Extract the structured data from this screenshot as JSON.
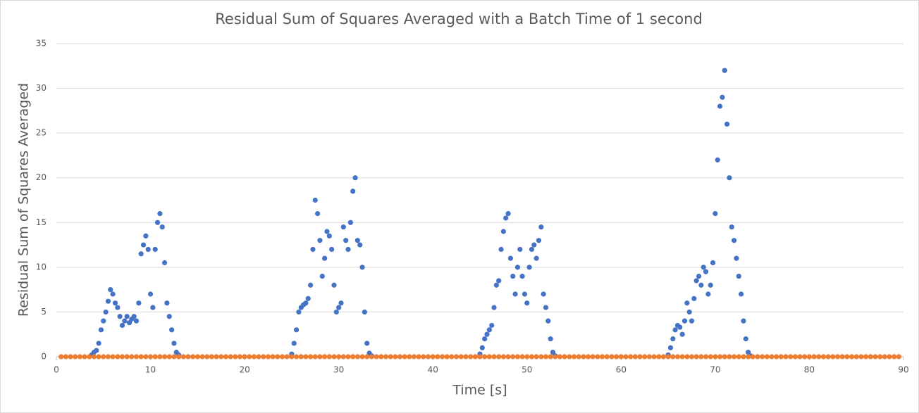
{
  "chart_data": {
    "type": "scatter",
    "title": "Residual Sum of Squares Averaged with a Batch Time of 1 second",
    "x_label": "Time [s]",
    "y_label": "Residual Sum of Squares Averaged",
    "xlim": [
      0,
      90
    ],
    "xticks": [
      0,
      10,
      20,
      30,
      40,
      50,
      60,
      70,
      80,
      90
    ],
    "ylim": [
      0,
      35
    ],
    "yticks": [
      0,
      5,
      10,
      15,
      20,
      25,
      30,
      35
    ],
    "grid": true,
    "series": [
      {
        "color": "#4472c4",
        "x": [
          3.75,
          4,
          4.25,
          4.5,
          4.75,
          5,
          5.25,
          5.5,
          5.75,
          6,
          6.25,
          6.5,
          6.75,
          7,
          7.25,
          7.5,
          7.75,
          8,
          8.25,
          8.5,
          8.75,
          9,
          9.25,
          9.5,
          9.75,
          10,
          10.25,
          10.5,
          10.75,
          11,
          11.25,
          11.5,
          11.75,
          12,
          12.25,
          12.5,
          12.75,
          13,
          25,
          25.25,
          25.5,
          25.75,
          26,
          26.25,
          26.5,
          26.75,
          27,
          27.25,
          27.5,
          27.75,
          28,
          28.25,
          28.5,
          28.75,
          29,
          29.25,
          29.5,
          29.75,
          30,
          30.25,
          30.5,
          30.75,
          31,
          31.25,
          31.5,
          31.75,
          32,
          32.25,
          32.5,
          32.75,
          33,
          33.25,
          33.5,
          45,
          45.25,
          45.5,
          45.75,
          46,
          46.25,
          46.5,
          46.75,
          47,
          47.25,
          47.5,
          47.75,
          48,
          48.25,
          48.5,
          48.75,
          49,
          49.25,
          49.5,
          49.75,
          50,
          50.25,
          50.5,
          50.75,
          51,
          51.25,
          51.5,
          51.75,
          52,
          52.25,
          52.5,
          52.75,
          53,
          65,
          65.25,
          65.5,
          65.75,
          66,
          66.25,
          66.5,
          66.75,
          67,
          67.25,
          67.5,
          67.75,
          68,
          68.25,
          68.5,
          68.75,
          69,
          69.25,
          69.5,
          69.75,
          70,
          70.25,
          70.5,
          70.75,
          71,
          71.25,
          71.5,
          71.75,
          72,
          72.25,
          72.5,
          72.75,
          73,
          73.25,
          73.5,
          73.75
        ],
        "values": [
          0.2,
          0.5,
          0.7,
          1.5,
          3,
          4,
          5,
          6.2,
          7.5,
          7,
          6,
          5.5,
          4.5,
          3.5,
          4,
          4.5,
          3.8,
          4.2,
          4.5,
          4,
          6,
          11.5,
          12.5,
          13.5,
          12,
          7,
          5.5,
          12,
          15,
          16,
          14.5,
          10.5,
          6,
          4.5,
          3,
          1.5,
          0.5,
          0.2,
          0.3,
          1.5,
          3,
          5,
          5.5,
          5.8,
          6,
          6.5,
          8,
          12,
          17.5,
          16,
          13,
          9,
          11,
          14,
          13.5,
          12,
          8,
          5,
          5.5,
          6,
          14.5,
          13,
          12,
          15,
          18.5,
          20,
          13,
          12.5,
          10,
          5,
          1.5,
          0.4,
          0.1,
          0.3,
          1,
          2,
          2.5,
          3,
          3.5,
          5.5,
          8,
          8.5,
          12,
          14,
          15.5,
          16,
          11,
          9,
          7,
          10,
          12,
          9,
          7,
          6,
          10,
          12,
          12.5,
          11,
          13,
          14.5,
          7,
          5.5,
          4,
          2,
          0.5,
          0.1,
          0.2,
          1,
          2,
          3,
          3.5,
          3.3,
          2.5,
          4,
          6,
          5,
          4,
          6.5,
          8.5,
          9,
          8,
          10,
          9.5,
          7,
          8,
          10.5,
          16,
          22,
          28,
          29,
          32,
          26,
          20,
          14.5,
          13,
          11,
          9,
          7,
          4,
          2,
          0.5,
          0.1
        ]
      },
      {
        "color": "#ed7d31",
        "x": [
          0.5,
          1,
          1.5,
          2,
          2.5,
          3,
          3.5,
          4,
          4.5,
          5,
          5.5,
          6,
          6.5,
          7,
          7.5,
          8,
          8.5,
          9,
          9.5,
          10,
          10.5,
          11,
          11.5,
          12,
          12.5,
          13,
          13.5,
          14,
          14.5,
          15,
          15.5,
          16,
          16.5,
          17,
          17.5,
          18,
          18.5,
          19,
          19.5,
          20,
          20.5,
          21,
          21.5,
          22,
          22.5,
          23,
          23.5,
          24,
          24.5,
          25,
          25.5,
          26,
          26.5,
          27,
          27.5,
          28,
          28.5,
          29,
          29.5,
          30,
          30.5,
          31,
          31.5,
          32,
          32.5,
          33,
          33.5,
          34,
          34.5,
          35,
          35.5,
          36,
          36.5,
          37,
          37.5,
          38,
          38.5,
          39,
          39.5,
          40,
          40.5,
          41,
          41.5,
          42,
          42.5,
          43,
          43.5,
          44,
          44.5,
          45,
          45.5,
          46,
          46.5,
          47,
          47.5,
          48,
          48.5,
          49,
          49.5,
          50,
          50.5,
          51,
          51.5,
          52,
          52.5,
          53,
          53.5,
          54,
          54.5,
          55,
          55.5,
          56,
          56.5,
          57,
          57.5,
          58,
          58.5,
          59,
          59.5,
          60,
          60.5,
          61,
          61.5,
          62,
          62.5,
          63,
          63.5,
          64,
          64.5,
          65,
          65.5,
          66,
          66.5,
          67,
          67.5,
          68,
          68.5,
          69,
          69.5,
          70,
          70.5,
          71,
          71.5,
          72,
          72.5,
          73,
          73.5,
          74,
          74.5,
          75,
          75.5,
          76,
          76.5,
          77,
          77.5,
          78,
          78.5,
          79,
          79.5,
          80,
          80.5,
          81,
          81.5,
          82,
          82.5,
          83,
          83.5,
          84,
          84.5,
          85,
          85.5,
          86,
          86.5,
          87,
          87.5,
          88,
          88.5,
          89,
          89.5
        ],
        "values": [
          0,
          0,
          0,
          0,
          0,
          0,
          0,
          0,
          0,
          0,
          0,
          0,
          0,
          0,
          0,
          0,
          0,
          0,
          0,
          0,
          0,
          0,
          0,
          0,
          0,
          0,
          0,
          0,
          0,
          0,
          0,
          0,
          0,
          0,
          0,
          0,
          0,
          0,
          0,
          0,
          0,
          0,
          0,
          0,
          0,
          0,
          0,
          0,
          0,
          0,
          0,
          0,
          0,
          0,
          0,
          0,
          0,
          0,
          0,
          0,
          0,
          0,
          0,
          0,
          0,
          0,
          0,
          0,
          0,
          0,
          0,
          0,
          0,
          0,
          0,
          0,
          0,
          0,
          0,
          0,
          0,
          0,
          0,
          0,
          0,
          0,
          0,
          0,
          0,
          0,
          0,
          0,
          0,
          0,
          0,
          0,
          0,
          0,
          0,
          0,
          0,
          0,
          0,
          0,
          0,
          0,
          0,
          0,
          0,
          0,
          0,
          0,
          0,
          0,
          0,
          0,
          0,
          0,
          0,
          0,
          0,
          0,
          0,
          0,
          0,
          0,
          0,
          0,
          0,
          0,
          0,
          0,
          0,
          0,
          0,
          0,
          0,
          0,
          0,
          0,
          0,
          0,
          0,
          0,
          0,
          0,
          0,
          0,
          0,
          0,
          0,
          0,
          0,
          0,
          0,
          0,
          0,
          0,
          0,
          0,
          0,
          0,
          0,
          0,
          0,
          0,
          0,
          0,
          0,
          0,
          0,
          0,
          0,
          0,
          0,
          0,
          0,
          0,
          0
        ]
      }
    ]
  }
}
